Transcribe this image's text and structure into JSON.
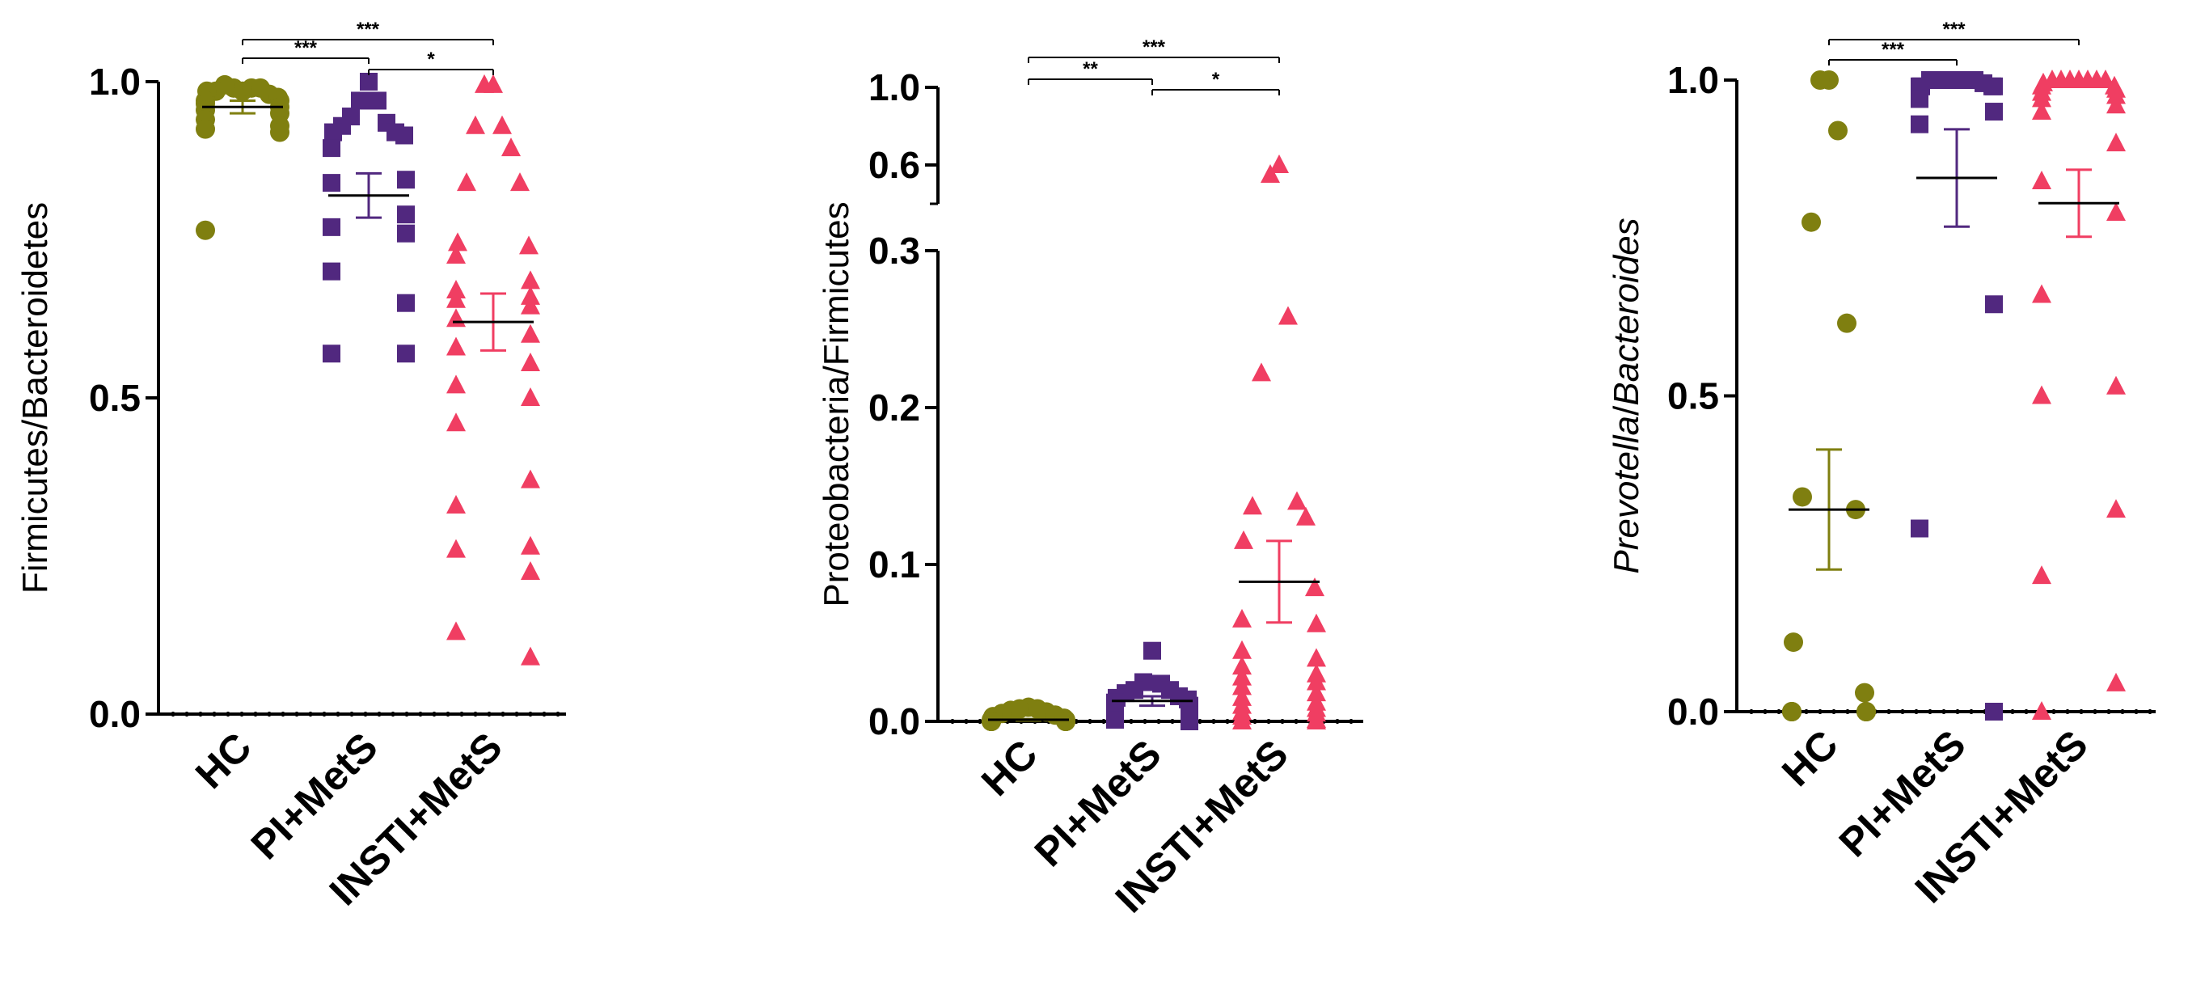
{
  "colors": {
    "hc": "#7f7f10",
    "pi": "#51287f",
    "insti": "#f03e62",
    "axis": "#000000"
  },
  "chart_data": [
    {
      "type": "scatter",
      "ylabel": "Firmicutes/Bacteroidetes",
      "ylim": [
        0,
        1
      ],
      "yticks": [
        {
          "value": 0.0,
          "label": "0.0"
        },
        {
          "value": 0.5,
          "label": "0.5"
        },
        {
          "value": 1.0,
          "label": "1.0"
        }
      ],
      "categories": [
        "HC",
        "PI+MetS",
        "INSTI+MetS"
      ],
      "series": [
        {
          "marker": "circle",
          "color": "#7f7f10",
          "mean": 0.96,
          "sem": 0.01,
          "values": [
            0.985,
            0.99,
            0.99,
            0.995,
            0.99,
            0.985,
            0.98,
            0.985,
            0.975,
            0.97,
            0.97,
            0.965,
            0.96,
            0.955,
            0.95,
            0.94,
            0.93,
            0.925,
            0.92,
            0.765
          ]
        },
        {
          "marker": "square",
          "color": "#51287f",
          "mean": 0.82,
          "sem": 0.035,
          "values": [
            1.0,
            0.97,
            0.97,
            0.945,
            0.935,
            0.93,
            0.92,
            0.92,
            0.915,
            0.895,
            0.845,
            0.84,
            0.79,
            0.77,
            0.76,
            0.7,
            0.65,
            0.57,
            0.57
          ]
        },
        {
          "marker": "triangle",
          "color": "#f03e62",
          "mean": 0.62,
          "sem": 0.045,
          "values": [
            0.995,
            0.995,
            0.93,
            0.93,
            0.895,
            0.84,
            0.84,
            0.745,
            0.74,
            0.725,
            0.685,
            0.67,
            0.66,
            0.655,
            0.645,
            0.625,
            0.6,
            0.58,
            0.555,
            0.52,
            0.5,
            0.46,
            0.37,
            0.33,
            0.265,
            0.26,
            0.225,
            0.13,
            0.09
          ]
        }
      ],
      "significance": [
        {
          "from": 0,
          "to": 1,
          "label": "***"
        },
        {
          "from": 1,
          "to": 2,
          "label": "*"
        },
        {
          "from": 0,
          "to": 2,
          "label": "***"
        }
      ]
    },
    {
      "type": "scatter",
      "ylabel": "Proteobacteria/Firmicutes",
      "broken_axis": true,
      "ylim_lower": [
        0,
        0.3
      ],
      "ylim_upper": [
        0.5,
        1.0
      ],
      "yticks": [
        {
          "value": 0.0,
          "label": "0.0"
        },
        {
          "value": 0.1,
          "label": "0.1"
        },
        {
          "value": 0.2,
          "label": "0.2"
        },
        {
          "value": 0.3,
          "label": "0.3"
        },
        {
          "value": 0.6,
          "label": "0.6"
        },
        {
          "value": 1.0,
          "label": "1.0"
        }
      ],
      "categories": [
        "HC",
        "PI+MetS",
        "INSTI+MetS"
      ],
      "series": [
        {
          "marker": "circle",
          "color": "#7f7f10",
          "mean": 0.001,
          "sem": 0.0005,
          "values": [
            0.009,
            0.008,
            0.008,
            0.007,
            0.006,
            0.005,
            0.004,
            0.003,
            0.002,
            0.001,
            0.001,
            0.0,
            0.0,
            0.0,
            0.0,
            0.0,
            0.0,
            0.0,
            0.0,
            0.0
          ]
        },
        {
          "marker": "square",
          "color": "#51287f",
          "mean": 0.013,
          "sem": 0.003,
          "values": [
            0.045,
            0.025,
            0.024,
            0.02,
            0.02,
            0.018,
            0.016,
            0.015,
            0.014,
            0.012,
            0.01,
            0.008,
            0.006,
            0.005,
            0.004,
            0.003,
            0.002,
            0.001,
            0.0
          ]
        },
        {
          "marker": "triangle",
          "color": "#f03e62",
          "mean": 0.089,
          "sem": 0.026,
          "values": [
            0.6,
            0.55,
            0.258,
            0.222,
            0.14,
            0.137,
            0.13,
            0.115,
            0.085,
            0.065,
            0.062,
            0.045,
            0.04,
            0.035,
            0.03,
            0.028,
            0.025,
            0.022,
            0.018,
            0.015,
            0.012,
            0.01,
            0.008,
            0.006,
            0.005,
            0.003,
            0.001,
            0.0,
            0.0
          ]
        }
      ],
      "significance": [
        {
          "from": 0,
          "to": 1,
          "label": "**"
        },
        {
          "from": 1,
          "to": 2,
          "label": "*"
        },
        {
          "from": 0,
          "to": 2,
          "label": "***"
        }
      ]
    },
    {
      "type": "scatter",
      "ylabel_italic_1": "Prevotella",
      "ylabel_sep": "/",
      "ylabel_italic_2": "Bacteroides",
      "ylim": [
        0,
        1
      ],
      "yticks": [
        {
          "value": 0.0,
          "label": "0.0"
        },
        {
          "value": 0.5,
          "label": "0.5"
        },
        {
          "value": 1.0,
          "label": "1.0"
        }
      ],
      "categories": [
        "HC",
        "PI+MetS",
        "INSTI+MetS"
      ],
      "series": [
        {
          "marker": "circle",
          "color": "#7f7f10",
          "mean": 0.32,
          "sem": 0.095,
          "values": [
            1.0,
            1.0,
            0.92,
            0.775,
            0.615,
            0.34,
            0.32,
            0.11,
            0.03,
            0.0,
            0.0,
            0.0,
            0.0,
            0.0,
            0.0
          ]
        },
        {
          "marker": "square",
          "color": "#51287f",
          "mean": 0.845,
          "sem": 0.077,
          "values": [
            1.0,
            1.0,
            1.0,
            1.0,
            1.0,
            1.0,
            0.995,
            0.99,
            0.99,
            0.99,
            0.99,
            0.97,
            0.95,
            0.93,
            0.645,
            0.29,
            0.0
          ]
        },
        {
          "marker": "triangle",
          "color": "#f03e62",
          "mean": 0.805,
          "sem": 0.053,
          "values": [
            1.0,
            1.0,
            1.0,
            1.0,
            1.0,
            1.0,
            1.0,
            0.995,
            0.99,
            0.99,
            0.985,
            0.98,
            0.975,
            0.97,
            0.96,
            0.95,
            0.9,
            0.84,
            0.79,
            0.66,
            0.515,
            0.5,
            0.32,
            0.215,
            0.045,
            0.0
          ]
        }
      ],
      "significance": [
        {
          "from": 0,
          "to": 1,
          "label": "***"
        },
        {
          "from": 0,
          "to": 2,
          "label": "***"
        }
      ]
    }
  ]
}
